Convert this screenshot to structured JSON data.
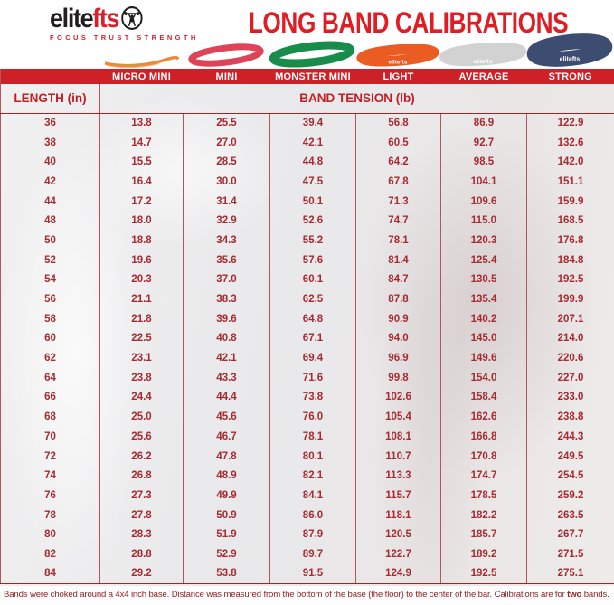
{
  "brand": {
    "logo_black": "elite",
    "logo_red": "fts",
    "tagline": "FOCUS   TRUST   STRENGTH"
  },
  "title": "LONG BAND CALIBRATIONS",
  "bands": [
    {
      "name": "Micro Mini",
      "color": "#e98a3c",
      "label": ""
    },
    {
      "name": "Mini",
      "color": "#dd4458",
      "label": ""
    },
    {
      "name": "Monster Mini",
      "color": "#188c4a",
      "label": ""
    },
    {
      "name": "Light",
      "color": "#eb5c22",
      "label": "elitefts"
    },
    {
      "name": "Average",
      "color": "#d2d2d2",
      "label": "elitefts"
    },
    {
      "name": "Strong",
      "color": "#3d4c71",
      "label": "elitefts"
    }
  ],
  "table": {
    "length_header": "LENGTH (in)",
    "tension_header": "BAND TENSION (lb)",
    "column_headers": [
      "MICRO MINI",
      "MINI",
      "MONSTER MINI",
      "LIGHT",
      "AVERAGE",
      "STRONG"
    ]
  },
  "chart_data": {
    "type": "table",
    "title": "LONG BAND CALIBRATIONS",
    "xlabel": "LENGTH (in)",
    "ylabel": "BAND TENSION (lb)",
    "columns": [
      "LENGTH (in)",
      "MICRO MINI",
      "MINI",
      "MONSTER MINI",
      "LIGHT",
      "AVERAGE",
      "STRONG"
    ],
    "rows": [
      [
        "36",
        "13.8",
        "25.5",
        "39.4",
        "56.8",
        "86.9",
        "122.9"
      ],
      [
        "38",
        "14.7",
        "27.0",
        "42.1",
        "60.5",
        "92.7",
        "132.6"
      ],
      [
        "40",
        "15.5",
        "28.5",
        "44.8",
        "64.2",
        "98.5",
        "142.0"
      ],
      [
        "42",
        "16.4",
        "30.0",
        "47.5",
        "67.8",
        "104.1",
        "151.1"
      ],
      [
        "44",
        "17.2",
        "31.4",
        "50.1",
        "71.3",
        "109.6",
        "159.9"
      ],
      [
        "48",
        "18.0",
        "32.9",
        "52.6",
        "74.7",
        "115.0",
        "168.5"
      ],
      [
        "50",
        "18.8",
        "34.3",
        "55.2",
        "78.1",
        "120.3",
        "176.8"
      ],
      [
        "52",
        "19.6",
        "35.6",
        "57.6",
        "81.4",
        "125.4",
        "184.8"
      ],
      [
        "54",
        "20.3",
        "37.0",
        "60.1",
        "84.7",
        "130.5",
        "192.5"
      ],
      [
        "56",
        "21.1",
        "38.3",
        "62.5",
        "87.8",
        "135.4",
        "199.9"
      ],
      [
        "58",
        "21.8",
        "39.6",
        "64.8",
        "90.9",
        "140.2",
        "207.1"
      ],
      [
        "60",
        "22.5",
        "40.8",
        "67.1",
        "94.0",
        "145.0",
        "214.0"
      ],
      [
        "62",
        "23.1",
        "42.1",
        "69.4",
        "96.9",
        "149.6",
        "220.6"
      ],
      [
        "64",
        "23.8",
        "43.3",
        "71.6",
        "99.8",
        "154.0",
        "227.0"
      ],
      [
        "66",
        "24.4",
        "44.4",
        "73.8",
        "102.6",
        "158.4",
        "233.0"
      ],
      [
        "68",
        "25.0",
        "45.6",
        "76.0",
        "105.4",
        "162.6",
        "238.8"
      ],
      [
        "70",
        "25.6",
        "46.7",
        "78.1",
        "108.1",
        "166.8",
        "244.3"
      ],
      [
        "72",
        "26.2",
        "47.8",
        "80.1",
        "110.7",
        "170.8",
        "249.5"
      ],
      [
        "74",
        "26.8",
        "48.9",
        "82.1",
        "113.3",
        "174.7",
        "254.5"
      ],
      [
        "76",
        "27.3",
        "49.9",
        "84.1",
        "115.7",
        "178.5",
        "259.2"
      ],
      [
        "78",
        "27.8",
        "50.9",
        "86.0",
        "118.1",
        "182.2",
        "263.5"
      ],
      [
        "80",
        "28.3",
        "51.9",
        "87.9",
        "120.5",
        "185.7",
        "267.7"
      ],
      [
        "82",
        "28.8",
        "52.9",
        "89.7",
        "122.7",
        "189.2",
        "271.5"
      ],
      [
        "84",
        "29.2",
        "53.8",
        "91.5",
        "124.9",
        "192.5",
        "275.1"
      ]
    ]
  },
  "footer": {
    "text_before": "Bands were choked around a 4x4 inch base. Distance was measured from the bottom of the base (the floor) to the center of the bar. Calibrations are for ",
    "bold_word": "two",
    "text_after": " bands."
  },
  "colors": {
    "header_bar_red": "#ce2027",
    "title_red": "#e01d24",
    "data_red": "#a62b31",
    "border_red": "#b5555a",
    "footer_red": "#8f2327"
  }
}
